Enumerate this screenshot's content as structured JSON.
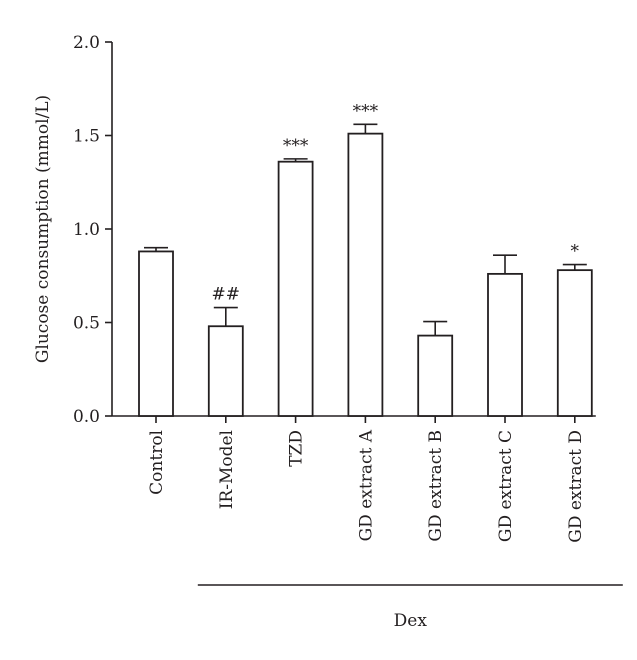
{
  "chart_data": {
    "type": "bar",
    "ylabel": "Glucose consumption (mmol/L)",
    "ylim": [
      0,
      2.0
    ],
    "yticks": [
      "0.0",
      "0.5",
      "1.0",
      "1.5",
      "2.0"
    ],
    "categories": [
      "Control",
      "IR-Model",
      "TZD",
      "GD extract A",
      "GD extract B",
      "GD extract C",
      "GD extract D"
    ],
    "values": [
      0.88,
      0.48,
      1.36,
      1.51,
      0.43,
      0.76,
      0.78
    ],
    "errors": [
      0.02,
      0.1,
      0.015,
      0.05,
      0.075,
      0.1,
      0.03
    ],
    "annotations": [
      "",
      "##",
      "***",
      "***",
      "",
      "",
      "*"
    ],
    "group": {
      "label": "Dex",
      "from": "IR-Model",
      "to": "GD extract D"
    },
    "colors": {
      "bar_fill": "#ffffff",
      "stroke": "#231f20"
    }
  }
}
